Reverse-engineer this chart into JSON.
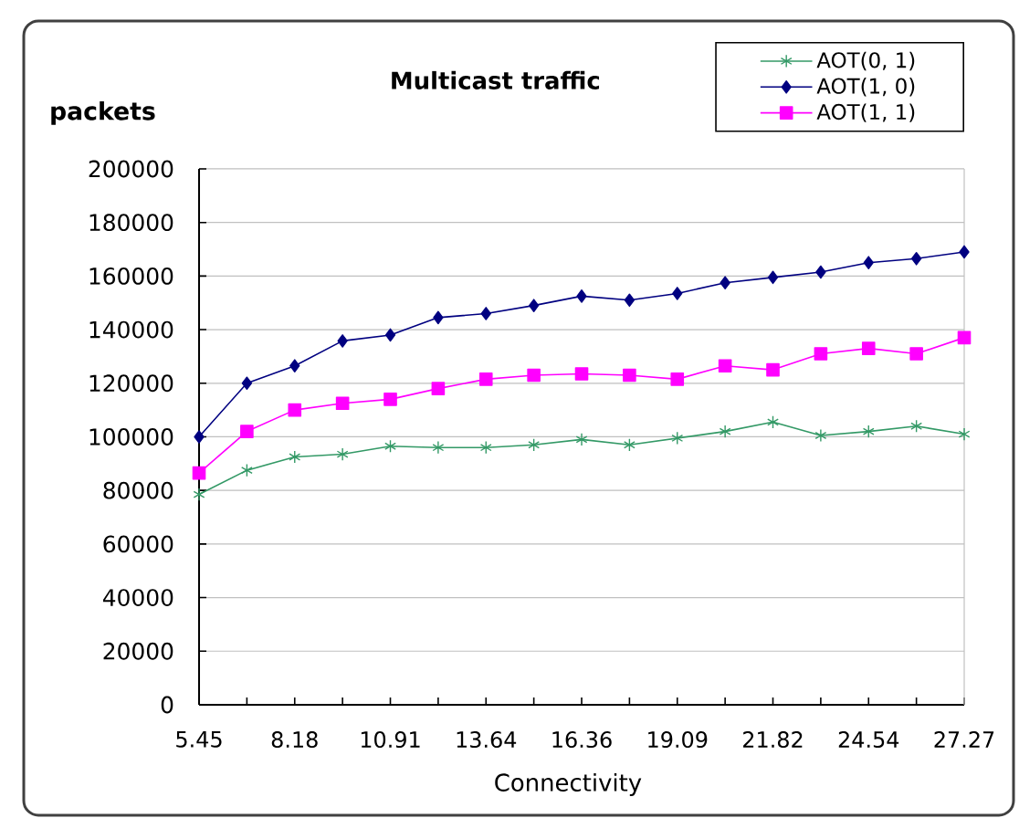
{
  "chart_data": {
    "type": "line",
    "title": "Multicast traffic",
    "xlabel": "Connectivity",
    "ylabel": "packets",
    "categories": [
      "5.45",
      null,
      "8.18",
      null,
      "10.91",
      null,
      "13.64",
      null,
      "16.36",
      null,
      "19.09",
      null,
      "21.82",
      null,
      "24.54",
      null,
      "27.27"
    ],
    "ylim": [
      0,
      200000
    ],
    "yticks": [
      0,
      20000,
      40000,
      60000,
      80000,
      100000,
      120000,
      140000,
      160000,
      180000,
      200000
    ],
    "grid": "y",
    "legend": "top right",
    "line_style": "solid",
    "series": [
      {
        "name": "AOT(0, 1)",
        "color": "#339966",
        "marker": "cross",
        "values": [
          78500,
          87500,
          92500,
          93500,
          96500,
          96000,
          96000,
          97000,
          99000,
          97000,
          99500,
          102000,
          105500,
          100500,
          102000,
          104000,
          101000
        ]
      },
      {
        "name": "AOT(1, 0)",
        "color": "#000080",
        "marker": "diamond",
        "values": [
          100000,
          120000,
          126500,
          135800,
          138000,
          144500,
          146000,
          149000,
          152500,
          151000,
          153500,
          157500,
          159500,
          161500,
          165000,
          166500,
          169000
        ]
      },
      {
        "name": "AOT(1, 1)",
        "color": "#ff00ff",
        "marker": "square",
        "values": [
          86500,
          102000,
          110000,
          112500,
          114000,
          118000,
          121500,
          123000,
          123500,
          123000,
          121500,
          126500,
          125000,
          131000,
          133000,
          131000,
          137000
        ]
      }
    ]
  }
}
